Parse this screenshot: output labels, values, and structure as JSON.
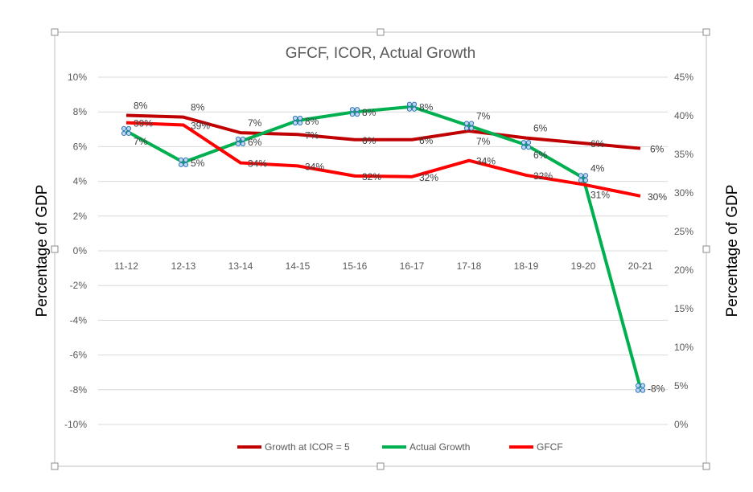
{
  "chart_data": {
    "type": "line",
    "title": "GFCF, ICOR, Actual Growth",
    "ylabel": "Percentage of GDP",
    "y2label": "Percentage of GDP",
    "categories": [
      "11-12",
      "12-13",
      "13-14",
      "14-15",
      "15-16",
      "16-17",
      "17-18",
      "18-19",
      "19-20",
      "20-21"
    ],
    "ylim": [
      -10,
      10
    ],
    "y2lim": [
      0,
      45
    ],
    "yticks": [
      "-10%",
      "-8%",
      "-6%",
      "-4%",
      "-2%",
      "0%",
      "2%",
      "4%",
      "6%",
      "8%",
      "10%"
    ],
    "y2ticks": [
      "0%",
      "5%",
      "10%",
      "15%",
      "20%",
      "25%",
      "30%",
      "35%",
      "40%",
      "45%"
    ],
    "grid": true,
    "legend_position": "bottom",
    "series": [
      {
        "name": "Growth at ICOR = 5",
        "axis": "left",
        "color": "#C00000",
        "values": [
          7.8,
          7.7,
          6.8,
          6.7,
          6.4,
          6.4,
          6.9,
          6.5,
          6.2,
          5.9
        ],
        "labels": [
          "8%",
          "8%",
          "7%",
          "7%",
          "6%",
          "6%",
          "7%",
          "6%",
          "6%",
          "6%"
        ]
      },
      {
        "name": "Actual Growth",
        "axis": "left",
        "color": "#00B050",
        "values": [
          6.9,
          5.1,
          6.3,
          7.5,
          8.0,
          8.3,
          7.2,
          6.1,
          4.2,
          -7.9
        ],
        "labels": [
          "7%",
          "5%",
          "6%",
          "8%",
          "8%",
          "8%",
          "7%",
          "6%",
          "4%",
          "-8%"
        ]
      },
      {
        "name": "GFCF",
        "axis": "right",
        "color": "#FF0000",
        "values": [
          39.1,
          38.8,
          33.9,
          33.5,
          32.2,
          32.1,
          34.2,
          32.3,
          31.1,
          29.6
        ],
        "labels": [
          "39%",
          "39%",
          "34%",
          "34%",
          "32%",
          "32%",
          "34%",
          "32%",
          "31%",
          "30%"
        ]
      }
    ]
  }
}
